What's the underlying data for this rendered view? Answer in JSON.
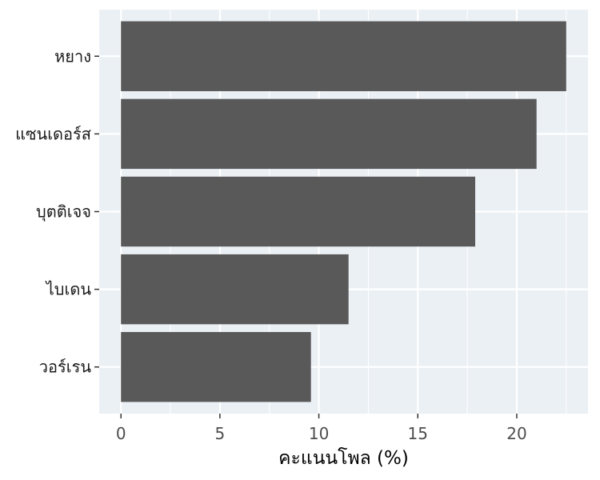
{
  "chart_data": {
    "type": "bar",
    "orientation": "horizontal",
    "categories": [
      "หยาง",
      "แซนเดอร์ส",
      "บุตติเจจ",
      "ไบเดน",
      "วอร์เรน"
    ],
    "values": [
      22.5,
      21.0,
      17.9,
      11.5,
      9.6
    ],
    "xlabel": "คะแนนโพล (%)",
    "ylabel": "",
    "xlim": [
      -1.1,
      23.6
    ],
    "xticks": [
      0,
      5,
      10,
      15,
      20
    ],
    "grid": true,
    "colors": {
      "bar": "#595959",
      "panel": "#ebf0f5",
      "grid": "#ffffff"
    }
  }
}
